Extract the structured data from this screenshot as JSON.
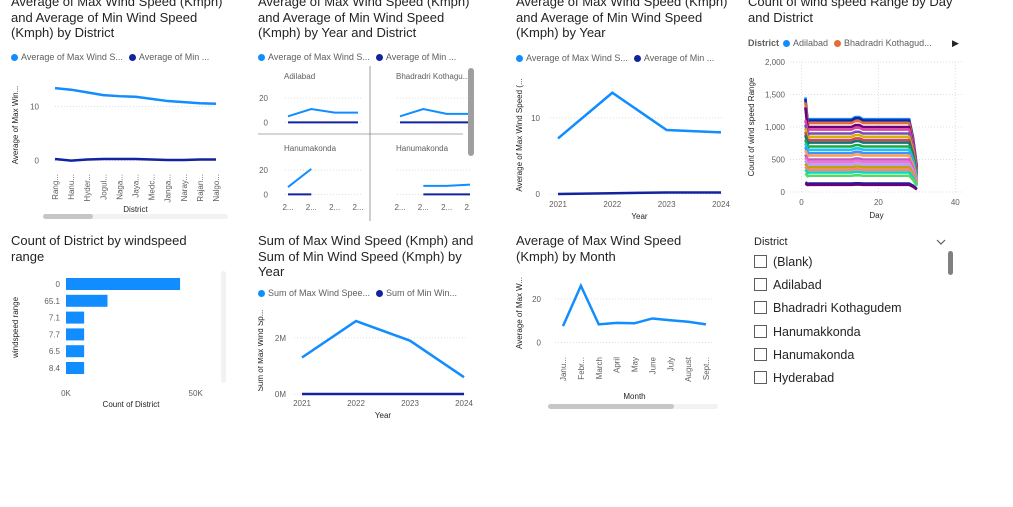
{
  "colors": {
    "series1": "#118DFF",
    "series2": "#12239E",
    "grid": "#e1dfdd",
    "bar": "#118DFF"
  },
  "legends": {
    "max_min_short": [
      "Average of Max Wind S...",
      "Average of Min ..."
    ],
    "max_min_short_mid": [
      "Average of Max Wind S...",
      "Average of Min ..."
    ],
    "max_min_year": [
      "Average of Max Wind S...",
      "Average of Min ..."
    ],
    "sum_year": [
      "Sum of Max Wind Spee...",
      "Sum of Min Win..."
    ]
  },
  "slicer": {
    "title": "District",
    "items": [
      "(Blank)",
      "Adilabad",
      "Bhadradri Kothagudem",
      "Hanumakkonda",
      "Hanumakonda",
      "Hyderabad"
    ]
  },
  "chart_data": [
    {
      "id": "c1",
      "type": "line",
      "title": "Average of Max Wind Speed (Kmph)\nand Average of Min Wind Speed\n(Kmph) by District",
      "xlabel": "District",
      "ylabel": "Average of Max Win...",
      "categories": [
        "Rang...",
        "Hanu...",
        "Hyder...",
        "Jogul...",
        "Naga...",
        "Jaya...",
        "Medc...",
        "Janga...",
        "Naray...",
        "Rajan...",
        "Nalgo..."
      ],
      "series": [
        {
          "name": "Average of Max Wind Speed (Kmph)",
          "values": [
            13.4,
            13.1,
            12.6,
            12.1,
            11.9,
            11.8,
            11.4,
            11.0,
            10.8,
            10.6,
            10.5
          ]
        },
        {
          "name": "Average of Min Wind Speed (Kmph)",
          "values": [
            0.3,
            0.0,
            0.2,
            0.3,
            0.3,
            0.3,
            0.2,
            0.1,
            0.1,
            0.2,
            0.2
          ]
        }
      ],
      "yticks": [
        0,
        10
      ],
      "ylim": [
        -1,
        16
      ]
    },
    {
      "id": "c2",
      "type": "line",
      "title": "Average of Max Wind Speed (Kmph)\nand Average of Min Wind Speed\n(Kmph) by Year and District",
      "xlabel": "",
      "small_multiples": [
        {
          "name": "Adilabad",
          "max": [
            5,
            11,
            8,
            8
          ],
          "min": [
            0,
            0,
            0,
            0
          ]
        },
        {
          "name": "Bhadradri Kothagu...",
          "max": [
            5,
            11,
            7,
            7
          ],
          "min": [
            0,
            0,
            0,
            0
          ]
        },
        {
          "name": "Hanumakonda",
          "max": [
            6,
            21,
            null,
            null
          ],
          "min": [
            0,
            0,
            null,
            null
          ]
        },
        {
          "name": "Hanumakonda",
          "max": [
            null,
            7,
            7,
            8
          ],
          "min": [
            null,
            0,
            0,
            0
          ]
        }
      ],
      "categories": [
        "2...",
        "2...",
        "2...",
        "2..."
      ],
      "yticks": [
        0,
        20
      ],
      "ylim": [
        -3,
        25
      ]
    },
    {
      "id": "c3",
      "type": "line",
      "title": "Average of Max Wind Speed (Kmph)\nand Average of Min Wind Speed\n(Kmph) by Year",
      "xlabel": "Year",
      "ylabel": "Average of Max Wind Speed (...",
      "x": [
        "2021",
        "2022",
        "2023",
        "2024"
      ],
      "series": [
        {
          "name": "Average of Max Wind Speed (Kmph)",
          "values": [
            7.3,
            13.3,
            8.4,
            8.1
          ]
        },
        {
          "name": "Average of Min Wind Speed (Kmph)",
          "values": [
            0.0,
            0.1,
            0.2,
            0.2
          ]
        }
      ],
      "yticks": [
        0,
        10
      ],
      "ylim": [
        0,
        15.5
      ]
    },
    {
      "id": "c4",
      "type": "line",
      "title": "Count of wind speed Range by Day\nand District",
      "legend_label": "District",
      "legend": [
        "Adilabad",
        "Bhadradri Kothagud..."
      ],
      "xlabel": "Day",
      "ylabel": "Count of wind speed Range",
      "xticks": [
        0,
        20,
        40
      ],
      "yticks": [
        0,
        500,
        1000,
        1500,
        2000
      ],
      "tick_labels": [
        "0",
        "500",
        "1,000",
        "1,500",
        "2,000"
      ],
      "xlim": [
        -3,
        42
      ],
      "ylim": [
        0,
        2000
      ],
      "series_levels": [
        1120,
        1100,
        1060,
        1000,
        960,
        900,
        850,
        800,
        760,
        700,
        650,
        600,
        560,
        500,
        460,
        420,
        380,
        340,
        300,
        250,
        130,
        110
      ],
      "series_colors": [
        "#118DFF",
        "#12239E",
        "#E66C37",
        "#6B007B",
        "#E044A7",
        "#744EC2",
        "#D9B300",
        "#D64550",
        "#197278",
        "#1AAB40",
        "#15C6F4",
        "#4092FF",
        "#FFA058",
        "#BE5DC9",
        "#F472D0",
        "#B5A1FF",
        "#C4A200",
        "#FF8080",
        "#00DBBC",
        "#5BD667",
        "#12239E",
        "#6B007B"
      ],
      "days": 30
    },
    {
      "id": "c5",
      "type": "bar",
      "orientation": "horizontal",
      "title": "Count of District by windspeed\nrange",
      "xlabel": "Count of District",
      "ylabel": "windspeed range",
      "categories": [
        "0",
        "65.1",
        "7.1",
        "7.7",
        "6.5",
        "8.4"
      ],
      "values": [
        44000,
        16000,
        7000,
        7000,
        7000,
        7000
      ],
      "xticks": [
        0,
        50000
      ],
      "tick_labels": [
        "0K",
        "50K"
      ],
      "xlim": [
        0,
        54000
      ]
    },
    {
      "id": "c6",
      "type": "line",
      "title": "Sum of Max Wind Speed (Kmph) and\nSum of Min Wind Speed (Kmph) by\nYear",
      "xlabel": "Year",
      "ylabel": "Sum of Max Wind Sp...",
      "x": [
        "2021",
        "2022",
        "2023",
        "2024"
      ],
      "series": [
        {
          "name": "Sum of Max Wind Speed (Kmph)",
          "values": [
            1.3,
            2.6,
            1.9,
            0.6
          ]
        },
        {
          "name": "Sum of Min Wind Speed (Kmph)",
          "values": [
            0.0,
            0.0,
            0.0,
            0.0
          ]
        }
      ],
      "yticks": [
        0,
        2
      ],
      "tick_labels": [
        "0M",
        "2M"
      ],
      "ylim": [
        0,
        3.1
      ]
    },
    {
      "id": "c7",
      "type": "line",
      "title": "Average of Max Wind Speed\n(Kmph) by Month",
      "xlabel": "Month",
      "ylabel": "Average of Max W...",
      "categories": [
        "Janu...",
        "Febr...",
        "March",
        "April",
        "May",
        "June",
        "July",
        "August",
        "Sept..."
      ],
      "series": [
        {
          "name": "Average of Max Wind Speed (Kmph)",
          "values": [
            7.5,
            26,
            8.3,
            9,
            8.8,
            11,
            10.2,
            9.5,
            8.3
          ]
        },
        {
          "name": "Average of Min Wind Speed (Kmph)",
          "values": [
            0.3,
            0.3,
            0.3,
            0.3,
            0.3,
            0.3,
            0.3,
            0.3,
            0.3
          ]
        }
      ],
      "yticks": [
        0,
        20
      ],
      "ylim": [
        -3,
        30
      ]
    }
  ]
}
